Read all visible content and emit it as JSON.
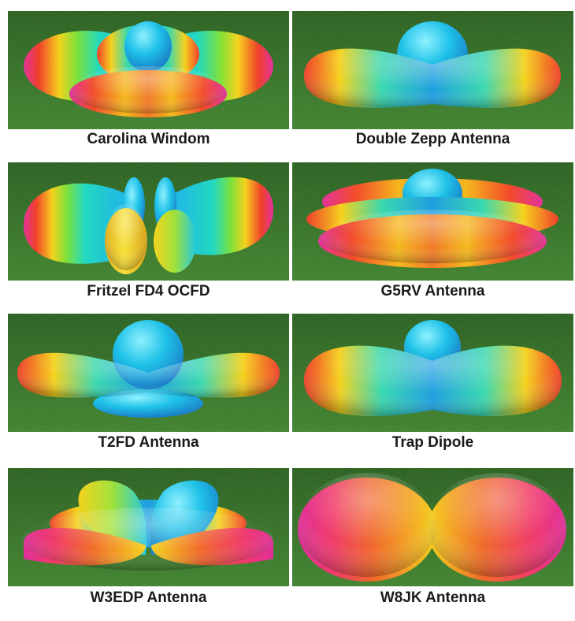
{
  "panels": [
    {
      "label": "Carolina Windom"
    },
    {
      "label": "Double Zepp Antenna"
    },
    {
      "label": "Fritzel FD4 OCFD"
    },
    {
      "label": "G5RV Antenna"
    },
    {
      "label": "T2FD Antenna"
    },
    {
      "label": "Trap Dipole"
    },
    {
      "label": "W3EDP Antenna"
    },
    {
      "label": "W8JK Antenna"
    }
  ],
  "colors": {
    "grass": "#2f6a1e",
    "lobe_low": "#1ec8e6",
    "lobe_mid": "#e6e62a",
    "lobe_high": "#e0309a"
  }
}
